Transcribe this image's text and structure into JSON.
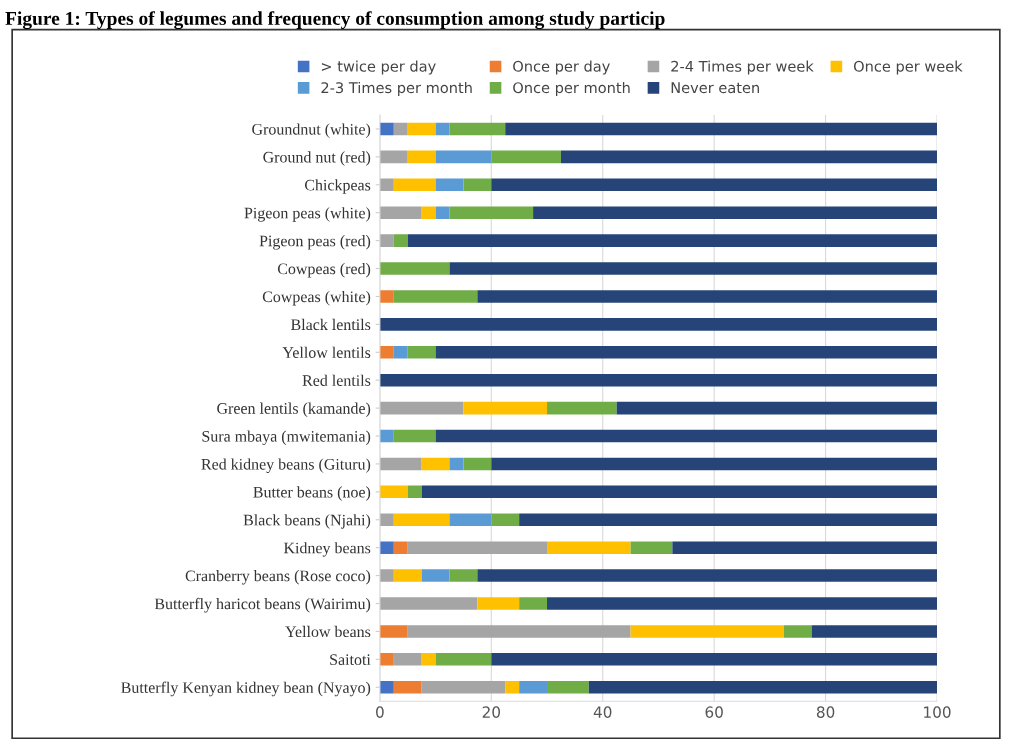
{
  "chart_data": {
    "type": "bar",
    "orientation": "horizontal",
    "stacked": true,
    "title": "Figure 1: Types of legumes and frequency of consumption among study particip",
    "categories": [
      "Groundnut (white)",
      "Ground nut (red)",
      "Chickpeas",
      "Pigeon peas (white)",
      "Pigeon peas (red)",
      "Cowpeas (red)",
      "Cowpeas (white)",
      "Black lentils",
      "Yellow lentils",
      "Red lentils",
      "Green lentils (kamande)",
      "Sura mbaya (mwitemania)",
      "Red kidney beans (Gituru)",
      "Butter beans (noe)",
      "Black beans (Njahi)",
      "Kidney beans",
      "Cranberry beans (Rose coco)",
      "Butterfly haricot beans (Wairimu)",
      "Yellow beans",
      "Saitoti",
      "Butterfly Kenyan kidney bean (Nyayo)"
    ],
    "series": [
      {
        "name": "> twice per day",
        "color": "#4472c4",
        "values": [
          2.5,
          0,
          0,
          0,
          0,
          0,
          0,
          0,
          0,
          0,
          0,
          0,
          0,
          0,
          0,
          2.5,
          0,
          0,
          0,
          0,
          2.5
        ]
      },
      {
        "name": "Once per day",
        "color": "#ed7d31",
        "values": [
          0,
          0,
          0,
          0,
          0,
          0,
          2.5,
          0,
          2.5,
          0,
          0,
          0,
          0,
          0,
          0,
          2.5,
          0,
          0,
          5,
          2.5,
          5
        ]
      },
      {
        "name": "2-4 Times per week",
        "color": "#a5a5a5",
        "values": [
          2.5,
          5,
          2.5,
          7.5,
          2.5,
          0,
          0,
          0,
          0,
          0,
          15,
          0,
          7.5,
          0,
          2.5,
          25,
          2.5,
          17.5,
          40,
          5,
          15
        ]
      },
      {
        "name": "Once per week",
        "color": "#ffc000",
        "values": [
          5,
          5,
          7.5,
          2.5,
          0,
          0,
          0,
          0,
          0,
          0,
          15,
          0,
          5,
          5,
          10,
          15,
          5,
          7.5,
          27.5,
          2.5,
          2.5
        ]
      },
      {
        "name": "2-3 Times per month",
        "color": "#5b9bd5",
        "values": [
          2.5,
          10,
          5,
          2.5,
          0,
          0,
          0,
          0,
          2.5,
          0,
          0,
          2.5,
          2.5,
          0,
          7.5,
          0,
          5,
          0,
          0,
          0,
          5
        ]
      },
      {
        "name": "Once per month",
        "color": "#70ad47",
        "values": [
          10,
          12.5,
          5,
          15,
          2.5,
          12.5,
          15,
          0,
          5,
          0,
          12.5,
          7.5,
          5,
          2.5,
          5,
          7.5,
          5,
          5,
          5,
          10,
          7.5
        ]
      },
      {
        "name": "Never eaten",
        "color": "#264478",
        "values": [
          77.5,
          67.5,
          80,
          72.5,
          95,
          87.5,
          82.5,
          100,
          90,
          100,
          57.5,
          90,
          80,
          92.5,
          75,
          47.5,
          82.5,
          70,
          22.5,
          80,
          62.5
        ]
      }
    ],
    "xlim": [
      0,
      100
    ],
    "xticks": [
      0,
      20,
      40,
      60,
      80,
      100
    ],
    "grid": "x",
    "legend": "top"
  }
}
